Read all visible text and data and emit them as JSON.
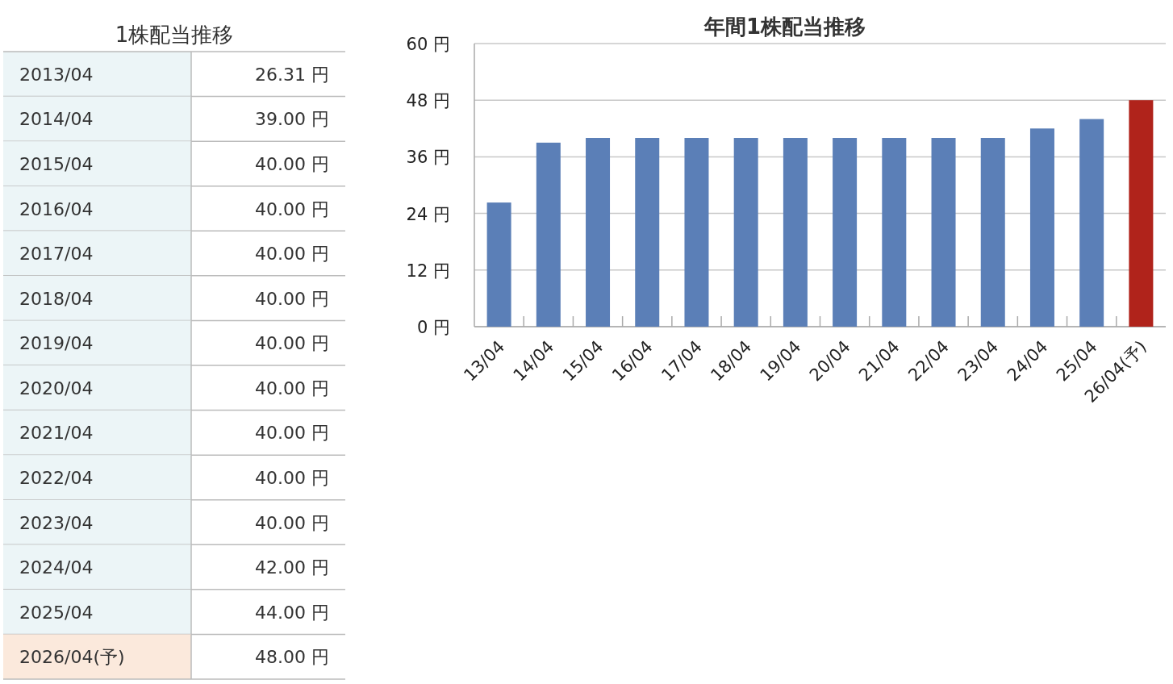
{
  "chart_data": [
    {
      "type": "other",
      "title": "1株配当推移",
      "annotations": [
        "2013/04",
        "26.31 円",
        "2014/04",
        "39.00 円",
        "2015/04",
        "40.00 円",
        "2016/04",
        "40.00 円",
        "2017/04",
        "40.00 円",
        "2018/04",
        "40.00 円",
        "2019/04",
        "40.00 円",
        "2020/04",
        "40.00 円",
        "2021/04",
        "40.00 円",
        "2022/04",
        "40.00 円",
        "2023/04",
        "40.00 円",
        "2024/04",
        "42.00 円",
        "2025/04",
        "44.00 円",
        "2026/04(予)",
        "48.00 円"
      ]
    },
    {
      "type": "bar",
      "title": "年間1株配当推移",
      "categories": [
        "13/04",
        "14/04",
        "15/04",
        "16/04",
        "17/04",
        "18/04",
        "19/04",
        "20/04",
        "21/04",
        "22/04",
        "23/04",
        "24/04",
        "25/04",
        "26/04(予)"
      ],
      "values": [
        26.31,
        39.0,
        40.0,
        40.0,
        40.0,
        40.0,
        40.0,
        40.0,
        40.0,
        40.0,
        40.0,
        42.0,
        44.0,
        48.0
      ],
      "colors": [
        "#5b7fb7",
        "#5b7fb7",
        "#5b7fb7",
        "#5b7fb7",
        "#5b7fb7",
        "#5b7fb7",
        "#5b7fb7",
        "#5b7fb7",
        "#5b7fb7",
        "#5b7fb7",
        "#5b7fb7",
        "#5b7fb7",
        "#5b7fb7",
        "#b0231b"
      ],
      "ylim": [
        0,
        60
      ],
      "yticks": [
        {
          "value": 0,
          "label": "0 円"
        },
        {
          "value": 12,
          "label": "12 円"
        },
        {
          "value": 24,
          "label": "24 円"
        },
        {
          "value": 36,
          "label": "36 円"
        },
        {
          "value": 48,
          "label": "48 円"
        },
        {
          "value": 60,
          "label": "60 円"
        }
      ],
      "grid": "y"
    }
  ]
}
